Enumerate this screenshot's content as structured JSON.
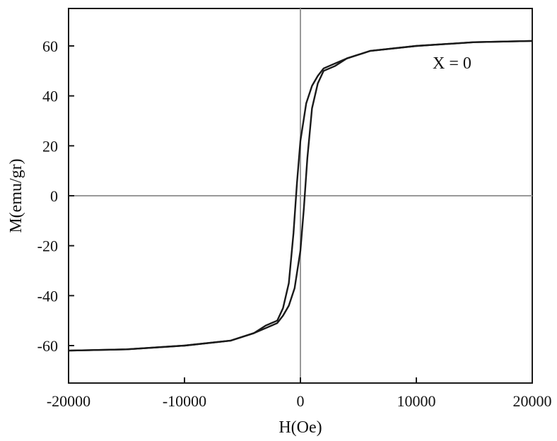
{
  "chart_data": {
    "type": "line",
    "title": "",
    "xlabel": "H(Oe)",
    "ylabel": "M(emu/gr)",
    "xlim": [
      -20000,
      20000
    ],
    "ylim": [
      -75,
      75
    ],
    "x_ticks": [
      -20000,
      -10000,
      0,
      10000,
      20000
    ],
    "x_tick_labels": [
      "-20000",
      "-10000",
      "0",
      "10000",
      "20000"
    ],
    "y_ticks": [
      -60,
      -40,
      -20,
      0,
      20,
      40,
      60
    ],
    "y_tick_labels": [
      "-60",
      "-40",
      "-20",
      "0",
      "20",
      "40",
      "60"
    ],
    "grid": false,
    "zero_lines": true,
    "legend": "none",
    "annotation": "X = 0",
    "colors": {
      "curve": "#1a1a1a",
      "zero_line": "#999999",
      "frame": "#1a1a1a"
    },
    "series": [
      {
        "branch": "descending",
        "x": [
          20000,
          15000,
          10000,
          6000,
          4000,
          3000,
          2000,
          1500,
          1000,
          500,
          0,
          -300,
          -600,
          -1000,
          -1500,
          -2000,
          -3000,
          -4000,
          -6000,
          -10000,
          -15000,
          -20000
        ],
        "y": [
          62,
          61.5,
          60,
          58,
          55,
          53,
          51,
          48,
          44,
          37,
          22,
          5,
          -15,
          -35,
          -45,
          -50,
          -52,
          -55,
          -58,
          -60,
          -61.5,
          -62
        ]
      },
      {
        "branch": "ascending",
        "x": [
          -20000,
          -15000,
          -10000,
          -6000,
          -4000,
          -3000,
          -2000,
          -1500,
          -1000,
          -500,
          0,
          300,
          600,
          1000,
          1500,
          2000,
          3000,
          4000,
          6000,
          10000,
          15000,
          20000
        ],
        "y": [
          -62,
          -61.5,
          -60,
          -58,
          -55,
          -53,
          -51,
          -48,
          -44,
          -37,
          -22,
          -5,
          15,
          35,
          45,
          50,
          52,
          55,
          58,
          60,
          61.5,
          62
        ]
      }
    ]
  }
}
